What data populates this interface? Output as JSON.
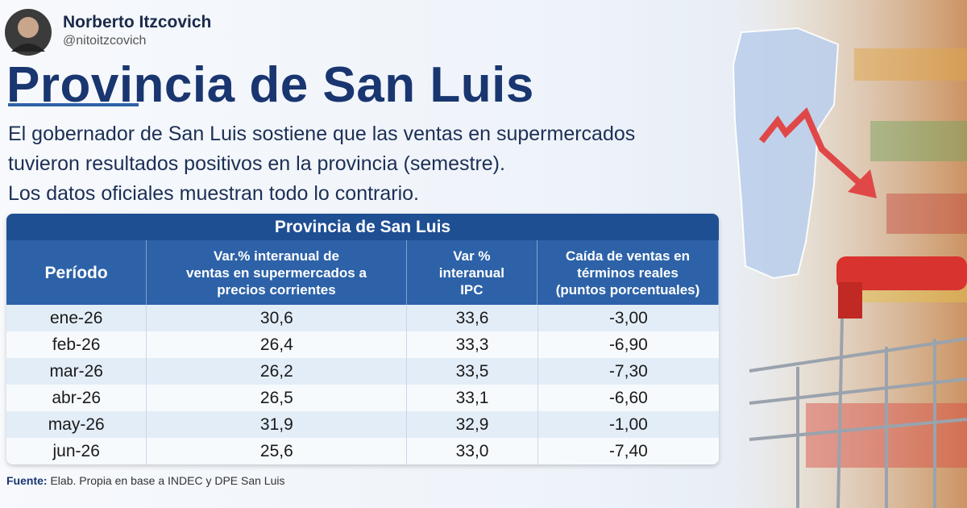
{
  "header": {
    "author": "Norberto Itzcovich",
    "handle": "@nitoitzcovich"
  },
  "title": "Provincia de San Luis",
  "subtitle": [
    "El gobernador de San Luis sostiene que las ventas en supermercados",
    "tuvieron resultados positivos en la provincia (semestre).",
    "Los datos oficiales muestran todo lo contrario."
  ],
  "table": {
    "title": "Provincia de San Luis",
    "columns": [
      [
        "Período"
      ],
      [
        "Var.% interanual de",
        "ventas en supermercados a",
        "precios corrientes"
      ],
      [
        "Var %",
        "interanual",
        "IPC"
      ],
      [
        "Caída de ventas en",
        "términos reales",
        "(puntos porcentuales)"
      ]
    ],
    "rows": [
      [
        "ene-26",
        "30,6",
        "33,6",
        "-3,00"
      ],
      [
        "feb-26",
        "26,4",
        "33,3",
        "-6,90"
      ],
      [
        "mar-26",
        "26,2",
        "33,5",
        "-7,30"
      ],
      [
        "abr-26",
        "26,5",
        "33,1",
        "-6,60"
      ],
      [
        "may-26",
        "31,9",
        "32,9",
        "-1,00"
      ],
      [
        "jun-26",
        "25,6",
        "33,0",
        "-7,40"
      ]
    ]
  },
  "source": {
    "label": "Fuente:",
    "text": "Elab. Propia en base a INDEC y DPE San Luis"
  }
}
